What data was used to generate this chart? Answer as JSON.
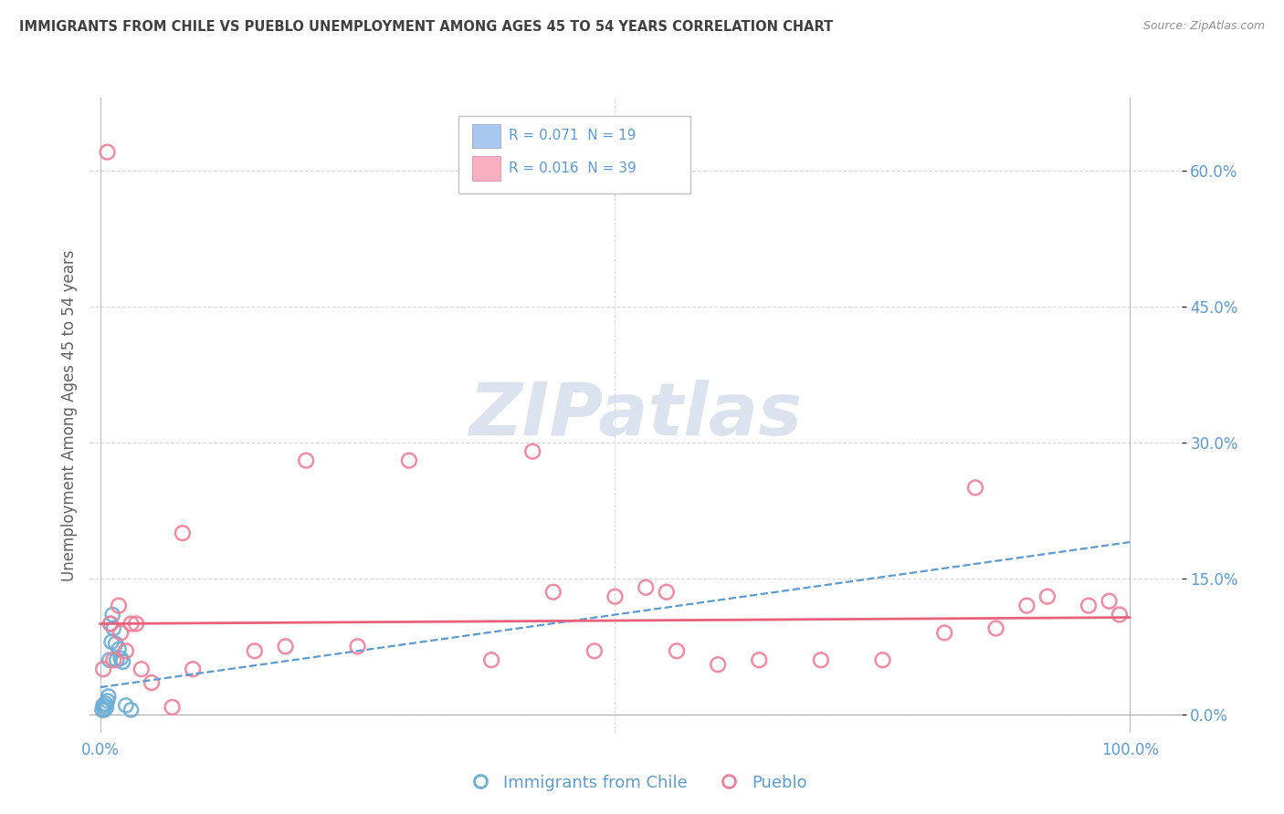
{
  "title": "IMMIGRANTS FROM CHILE VS PUEBLO UNEMPLOYMENT AMONG AGES 45 TO 54 YEARS CORRELATION CHART",
  "source": "Source: ZipAtlas.com",
  "ylabel": "Unemployment Among Ages 45 to 54 years",
  "ytick_labels": [
    "0.0%",
    "15.0%",
    "30.0%",
    "45.0%",
    "60.0%"
  ],
  "ytick_values": [
    0.0,
    0.15,
    0.3,
    0.45,
    0.6
  ],
  "xtick_labels": [
    "0.0%",
    "100.0%"
  ],
  "xtick_values": [
    0.0,
    1.0
  ],
  "xlim": [
    -0.01,
    1.05
  ],
  "ylim": [
    -0.02,
    0.68
  ],
  "legend_r1": "R = 0.071  N = 19",
  "legend_r2": "R = 0.016  N = 39",
  "legend_label1": "Immigrants from Chile",
  "legend_label2": "Pueblo",
  "chile_color": "#6baed6",
  "pueblo_color": "#f08098",
  "chile_legend_color": "#a8c8f0",
  "pueblo_legend_color": "#f8b0c0",
  "chile_scatter_x": [
    0.002,
    0.003,
    0.004,
    0.005,
    0.006,
    0.007,
    0.008,
    0.009,
    0.01,
    0.011,
    0.012,
    0.013,
    0.015,
    0.016,
    0.018,
    0.02,
    0.022,
    0.025,
    0.03
  ],
  "chile_scatter_y": [
    0.005,
    0.01,
    0.005,
    0.012,
    0.008,
    0.015,
    0.02,
    0.06,
    0.1,
    0.08,
    0.11,
    0.095,
    0.078,
    0.06,
    0.072,
    0.062,
    0.058,
    0.01,
    0.005
  ],
  "pueblo_scatter_x": [
    0.003,
    0.007,
    0.01,
    0.013,
    0.018,
    0.02,
    0.025,
    0.03,
    0.035,
    0.04,
    0.05,
    0.07,
    0.08,
    0.09,
    0.15,
    0.18,
    0.2,
    0.25,
    0.3,
    0.38,
    0.42,
    0.48,
    0.5,
    0.53,
    0.56,
    0.6,
    0.64,
    0.7,
    0.76,
    0.82,
    0.85,
    0.87,
    0.9,
    0.92,
    0.96,
    0.98,
    0.99,
    0.55,
    0.44
  ],
  "pueblo_scatter_y": [
    0.05,
    0.62,
    0.1,
    0.06,
    0.12,
    0.09,
    0.07,
    0.1,
    0.1,
    0.05,
    0.035,
    0.008,
    0.2,
    0.05,
    0.07,
    0.075,
    0.28,
    0.075,
    0.28,
    0.06,
    0.29,
    0.07,
    0.13,
    0.14,
    0.07,
    0.055,
    0.06,
    0.06,
    0.06,
    0.09,
    0.25,
    0.095,
    0.12,
    0.13,
    0.12,
    0.125,
    0.11,
    0.135,
    0.135
  ],
  "chile_trend_x": [
    0.0,
    1.0
  ],
  "chile_trend_y": [
    0.03,
    0.19
  ],
  "pueblo_trend_x": [
    0.0,
    1.0
  ],
  "pueblo_trend_y": [
    0.1,
    0.107
  ],
  "grid_color": "#d8d8d8",
  "watermark_text": "ZIPatlas",
  "watermark_color": "#ccd9e8",
  "bg_color": "#ffffff",
  "title_color": "#404040",
  "axis_tick_color": "#5b9bd5",
  "ylabel_color": "#606060",
  "trend_chile_color": "#5b9bd5",
  "trend_pueblo_color": "#e8607a",
  "bottom_line_color": "#aaaaaa"
}
